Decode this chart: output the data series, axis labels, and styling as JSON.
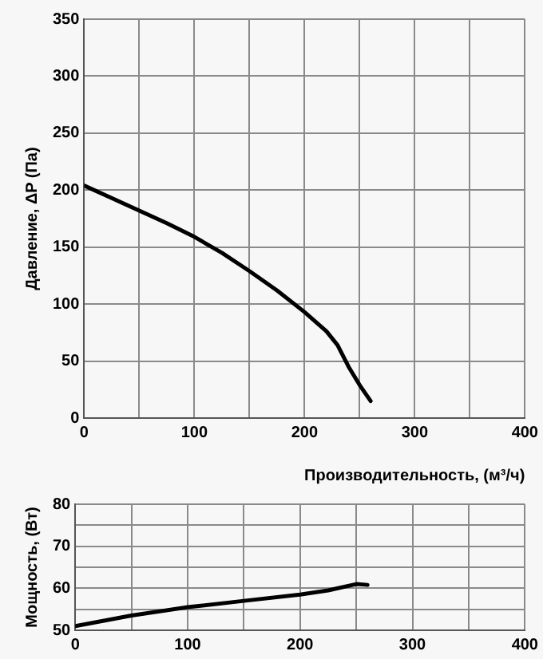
{
  "chart_data": [
    {
      "type": "line",
      "ylabel": "Давление, ΔP (Па)",
      "xlabel": "Производительность, (м³/ч)",
      "x": [
        0,
        25,
        50,
        75,
        100,
        125,
        150,
        175,
        200,
        220,
        230,
        240,
        250,
        260
      ],
      "series": [
        {
          "color": "#000000",
          "values": [
            204,
            193,
            182,
            171,
            159,
            145,
            129,
            112,
            93,
            76,
            64,
            45,
            29,
            15
          ]
        }
      ],
      "xlim": [
        0,
        400
      ],
      "xticks": [
        0,
        {
          "value": 50,
          "label": null
        },
        100,
        {
          "value": 150,
          "label": null
        },
        200,
        {
          "value": 250,
          "label": null
        },
        300,
        {
          "value": 350,
          "label": null
        },
        400
      ],
      "ylim": [
        0,
        350
      ],
      "yticks": [
        0,
        50,
        100,
        150,
        200,
        250,
        300,
        350
      ],
      "grid": true,
      "legend": false,
      "marker": "none",
      "line_style": "solid"
    },
    {
      "type": "line",
      "ylabel": "Мощность, (Вт)",
      "x": [
        0,
        50,
        100,
        150,
        200,
        225,
        250,
        260
      ],
      "series": [
        {
          "color": "#000000",
          "values": [
            51,
            53.5,
            55.5,
            57,
            58.5,
            59.5,
            61,
            60.8
          ]
        }
      ],
      "xlim": [
        0,
        400
      ],
      "xticks": [
        0,
        {
          "value": 50,
          "label": null
        },
        100,
        {
          "value": 150,
          "label": null
        },
        200,
        {
          "value": 250,
          "label": null
        },
        300,
        {
          "value": 350,
          "label": null
        },
        400
      ],
      "ylim": [
        50,
        80
      ],
      "yticks": [
        50,
        {
          "value": 55,
          "label": null
        },
        60,
        {
          "value": 65,
          "label": null
        },
        70,
        {
          "value": 75,
          "label": null
        },
        80
      ],
      "grid": true,
      "legend": false,
      "marker": "none",
      "line_style": "solid"
    }
  ]
}
